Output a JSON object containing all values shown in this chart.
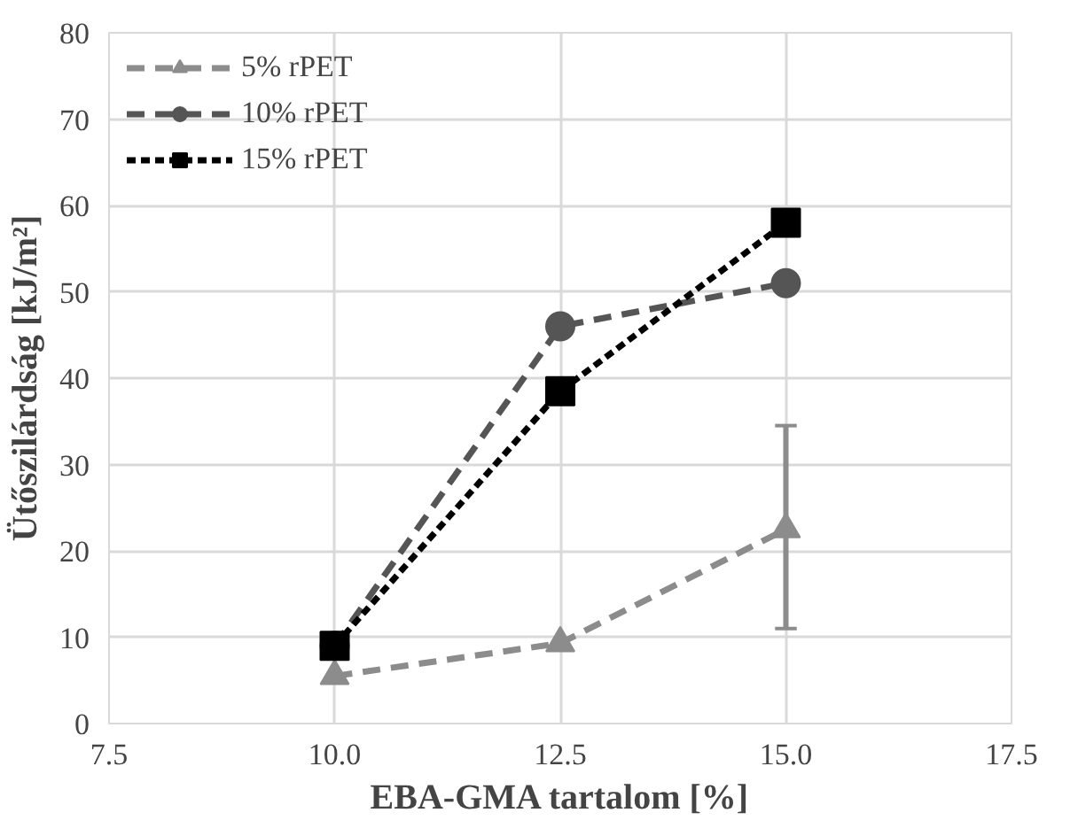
{
  "chart_data": {
    "type": "line",
    "xlabel": "EBA-GMA tartalom [%]",
    "ylabel": "Ütőszilárdság [kJ/m²]",
    "xlim": [
      7.5,
      17.5
    ],
    "xticks": [
      {
        "value": 7.5,
        "label": "7.5"
      },
      {
        "value": 10,
        "label": "10.0"
      },
      {
        "value": 12.5,
        "label": "12.5"
      },
      {
        "value": 15,
        "label": "15.0"
      },
      {
        "value": 17.5,
        "label": "17.5"
      }
    ],
    "ylim": [
      0,
      80
    ],
    "yticks": [
      0,
      10,
      20,
      30,
      40,
      50,
      60,
      70,
      80
    ],
    "grid": true,
    "legend": "top left",
    "x": [
      10,
      12.5,
      15
    ],
    "series": [
      {
        "name": "5% rPET",
        "color": "#8c8c8c",
        "values": [
          5.5,
          9.3,
          22.5
        ],
        "errors": [
          null,
          null,
          [
            11,
            34.5
          ]
        ],
        "marker": "triangle",
        "line_style": "dashed"
      },
      {
        "name": "10% rPET",
        "color": "#555555",
        "values": [
          9,
          46,
          51
        ],
        "marker": "circle",
        "line_style": "dashed"
      },
      {
        "name": "15% rPET",
        "color": "#000000",
        "values": [
          9,
          38.5,
          58
        ],
        "marker": "square",
        "line_style": "dotted"
      }
    ]
  }
}
